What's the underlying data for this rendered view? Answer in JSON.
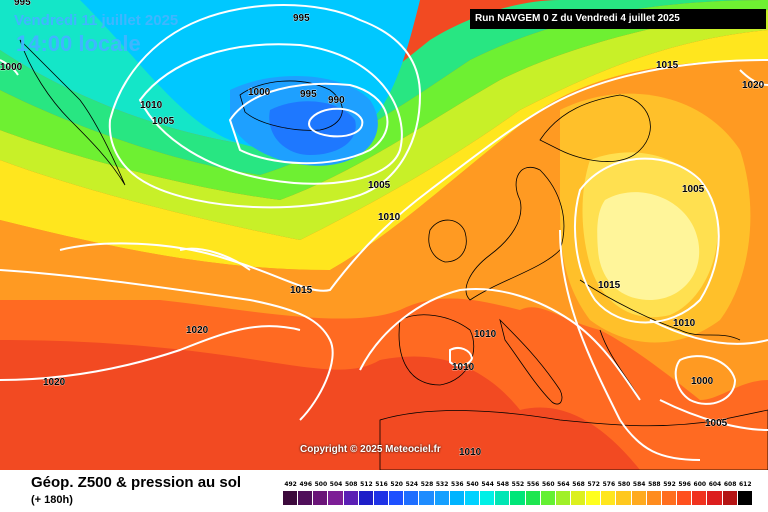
{
  "header": {
    "date_line": "Vendredi 11 juillet 2025",
    "time_line": "14:00 locale",
    "run_banner": "Run NAVGEM 0 Z du Vendredi 4 juillet 2025"
  },
  "copyright": "Copyright © 2025 Meteociel.fr",
  "footer": {
    "title": "Géop. Z500 & pression au sol",
    "subtitle": "(+ 180h)"
  },
  "legend": {
    "values": [
      "492",
      "496",
      "500",
      "504",
      "508",
      "512",
      "516",
      "520",
      "524",
      "528",
      "532",
      "536",
      "540",
      "544",
      "548",
      "552",
      "556",
      "560",
      "564",
      "568",
      "572",
      "576",
      "580",
      "584",
      "588",
      "592",
      "596",
      "600",
      "604",
      "608",
      "612"
    ],
    "colors": [
      "#3c0a3c",
      "#500f5a",
      "#6a1478",
      "#7d1e96",
      "#5a1eb4",
      "#1e1ec8",
      "#1e32e6",
      "#1e50ff",
      "#1e6eff",
      "#1e8cff",
      "#14a0ff",
      "#00b4ff",
      "#00d2ff",
      "#00f0e6",
      "#00e6b4",
      "#00e678",
      "#1ee650",
      "#64f032",
      "#a0f028",
      "#dcf01e",
      "#ffff1e",
      "#ffe61e",
      "#ffc81e",
      "#ffaa1e",
      "#ff8c1e",
      "#ff6e1e",
      "#ff501e",
      "#f0321e",
      "#dc1e1e",
      "#b41414",
      "#000000"
    ]
  },
  "isobar_labels": [
    {
      "text": "995"
    },
    {
      "text": "1000"
    },
    {
      "text": "995"
    },
    {
      "text": "990"
    },
    {
      "text": "1000"
    },
    {
      "text": "1010"
    },
    {
      "text": "1005"
    },
    {
      "text": "1005"
    },
    {
      "text": "1010"
    },
    {
      "text": "1015"
    },
    {
      "text": "1020"
    },
    {
      "text": "1020"
    },
    {
      "text": "1015"
    },
    {
      "text": "1020"
    },
    {
      "text": "1005"
    },
    {
      "text": "1015"
    },
    {
      "text": "1010"
    },
    {
      "text": "1010"
    },
    {
      "text": "1010"
    },
    {
      "text": "1000"
    },
    {
      "text": "1005"
    },
    {
      "text": "1010"
    },
    {
      "text": "995"
    }
  ]
}
